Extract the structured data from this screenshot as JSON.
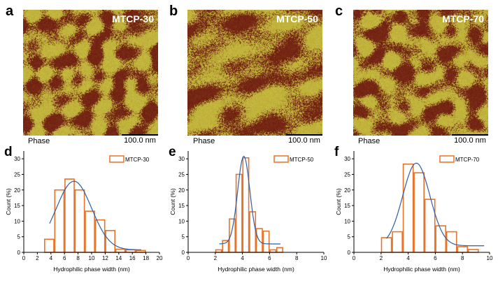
{
  "panels": {
    "a": {
      "label": "a",
      "title": "MTCP-30",
      "phase": "Phase",
      "scale": "100.0 nm"
    },
    "b": {
      "label": "b",
      "title": "MTCP-50",
      "phase": "Phase",
      "scale": "100.0 nm"
    },
    "c": {
      "label": "c",
      "title": "MTCP-70",
      "phase": "Phase",
      "scale": "100.0 nm"
    }
  },
  "colors": {
    "bar": "#e8732a",
    "fit": "#2f5fa8",
    "afm_dark": "#6e1a10",
    "afm_light": "#c8c040"
  },
  "chart_data": [
    {
      "panel": "d",
      "type": "bar",
      "legend": "MTCP-30",
      "legend_position": "top-right",
      "xlabel": "Hydrophilic phase width (nm)",
      "ylabel": "Count (%)",
      "xlim": [
        0,
        20
      ],
      "ylim": [
        0,
        32.5
      ],
      "xticks": [
        0,
        2,
        4,
        6,
        8,
        10,
        12,
        14,
        16,
        18,
        20
      ],
      "yticks": [
        0,
        5,
        10,
        15,
        20,
        25,
        30
      ],
      "bin_width": 1.5,
      "bins": [
        3,
        4.5,
        6,
        7.5,
        9,
        10.5,
        12,
        13.5,
        15,
        16.5
      ],
      "values": [
        4.2,
        20,
        23.5,
        20,
        13.2,
        10.4,
        7,
        1,
        0.8,
        0.6
      ],
      "fit": {
        "center": 7.4,
        "sigma": 2.6,
        "peak": 22.8,
        "baseline": 0.8,
        "x_range": [
          3.8,
          17.3
        ]
      }
    },
    {
      "panel": "e",
      "type": "bar",
      "legend": "MTCP-50",
      "legend_position": "top-right",
      "xlabel": "Hydrophilic phase width (nm)",
      "ylabel": "Count (%)",
      "xlim": [
        0,
        10
      ],
      "ylim": [
        0,
        32.5
      ],
      "xticks": [
        0,
        2,
        4,
        6,
        8,
        10
      ],
      "yticks": [
        0,
        5,
        10,
        15,
        20,
        25,
        30
      ],
      "bin_width": 0.5,
      "bins": [
        2,
        2.5,
        3,
        3.5,
        4,
        4.5,
        5,
        5.5,
        6,
        6.5
      ],
      "values": [
        0.8,
        3.8,
        10.7,
        25,
        30.3,
        13,
        7.6,
        6.8,
        0.8,
        1.5
      ],
      "fit": {
        "center": 4.1,
        "sigma": 0.45,
        "peak": 30.8,
        "baseline": 2.7,
        "x_range": [
          2.3,
          6.8
        ]
      }
    },
    {
      "panel": "f",
      "type": "bar",
      "legend": "MTCP-70",
      "legend_position": "top-right",
      "xlabel": "Hydrophilic phase width (nm)",
      "ylabel": "Count (%)",
      "xlim": [
        0,
        10
      ],
      "ylim": [
        0,
        32.5
      ],
      "xticks": [
        0,
        2,
        4,
        6,
        8,
        10
      ],
      "yticks": [
        0,
        5,
        10,
        15,
        20,
        25,
        30
      ],
      "bin_width": 0.8,
      "bins": [
        2,
        2.8,
        3.6,
        4.4,
        5.2,
        6,
        6.8,
        7.6,
        8.4
      ],
      "values": [
        4.7,
        6.6,
        28.3,
        25.5,
        17,
        8.5,
        6.6,
        1.8,
        0.9
      ],
      "fit": {
        "center": 4.6,
        "sigma": 1.0,
        "peak": 28.6,
        "baseline": 2.1,
        "x_range": [
          2.4,
          9.6
        ]
      }
    }
  ]
}
